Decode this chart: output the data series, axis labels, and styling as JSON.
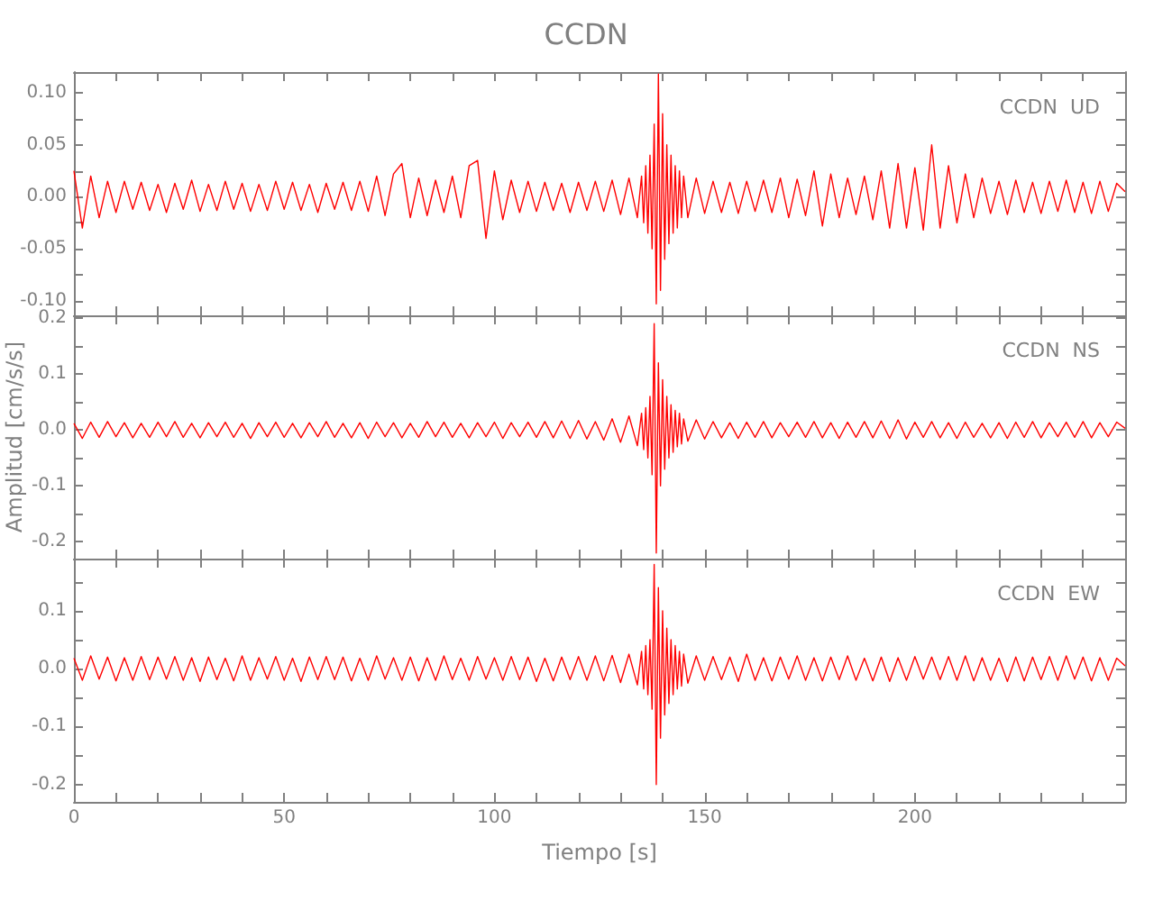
{
  "chart_data": [
    {
      "type": "line",
      "title": "CCDN",
      "annotations": [
        "CCDN  UD"
      ],
      "marker": "none",
      "line_style": "solid",
      "grid": false,
      "tick_labels": "y",
      "x": [
        0,
        2,
        4,
        6,
        8,
        10,
        12,
        14,
        16,
        18,
        20,
        22,
        24,
        26,
        28,
        30,
        32,
        34,
        36,
        38,
        40,
        42,
        44,
        46,
        48,
        50,
        52,
        54,
        56,
        58,
        60,
        62,
        64,
        66,
        68,
        70,
        72,
        74,
        76,
        78,
        80,
        82,
        84,
        86,
        88,
        90,
        92,
        94,
        96,
        98,
        100,
        102,
        104,
        106,
        108,
        110,
        112,
        114,
        116,
        118,
        120,
        122,
        124,
        126,
        128,
        130,
        132,
        134,
        135,
        135.5,
        136,
        136.5,
        137,
        137.5,
        138,
        138.5,
        139,
        139.5,
        140,
        140.5,
        141,
        141.5,
        142,
        142.5,
        143,
        143.5,
        144,
        144.5,
        145,
        146,
        148,
        150,
        152,
        154,
        156,
        158,
        160,
        162,
        164,
        166,
        168,
        170,
        172,
        174,
        176,
        178,
        180,
        182,
        184,
        186,
        188,
        190,
        192,
        194,
        196,
        198,
        200,
        202,
        204,
        206,
        208,
        210,
        212,
        214,
        216,
        218,
        220,
        222,
        224,
        226,
        228,
        230,
        232,
        234,
        236,
        238,
        240,
        242,
        244,
        246,
        248,
        250
      ],
      "xlim": [
        0,
        250
      ],
      "xticks": [
        0,
        {
          "value": 10,
          "label": null
        },
        {
          "value": 20,
          "label": null
        },
        {
          "value": 30,
          "label": null
        },
        {
          "value": 40,
          "label": null
        },
        50,
        {
          "value": 60,
          "label": null
        },
        {
          "value": 70,
          "label": null
        },
        {
          "value": 80,
          "label": null
        },
        {
          "value": 90,
          "label": null
        },
        100,
        {
          "value": 110,
          "label": null
        },
        {
          "value": 120,
          "label": null
        },
        {
          "value": 130,
          "label": null
        },
        {
          "value": 140,
          "label": null
        },
        150,
        {
          "value": 160,
          "label": null
        },
        {
          "value": 170,
          "label": null
        },
        {
          "value": 180,
          "label": null
        },
        {
          "value": 190,
          "label": null
        },
        200,
        {
          "value": 210,
          "label": null
        },
        {
          "value": 220,
          "label": null
        },
        {
          "value": 230,
          "label": null
        },
        {
          "value": 240,
          "label": null
        }
      ],
      "ylim": [
        -0.114,
        0.12
      ],
      "yticks": [
        {
          "value": -0.1,
          "label": "-0.10"
        },
        {
          "value": -0.075,
          "label": null
        },
        {
          "value": -0.05,
          "label": "-0.05"
        },
        {
          "value": -0.025,
          "label": null
        },
        {
          "value": 0,
          "label": "0.00"
        },
        {
          "value": 0.025,
          "label": null
        },
        {
          "value": 0.05,
          "label": "0.05"
        },
        {
          "value": 0.075,
          "label": null
        },
        {
          "value": 0.1,
          "label": "0.10"
        }
      ],
      "series": [
        {
          "color": "#ff0000",
          "values": [
            0.025,
            -0.03,
            0.02,
            -0.02,
            0.015,
            -0.015,
            0.015,
            -0.012,
            0.014,
            -0.013,
            0.012,
            -0.015,
            0.013,
            -0.012,
            0.016,
            -0.014,
            0.012,
            -0.013,
            0.015,
            -0.012,
            0.013,
            -0.014,
            0.012,
            -0.013,
            0.015,
            -0.012,
            0.014,
            -0.013,
            0.012,
            -0.015,
            0.013,
            -0.012,
            0.014,
            -0.013,
            0.015,
            -0.014,
            0.02,
            -0.018,
            0.022,
            0.032,
            -0.02,
            0.018,
            -0.018,
            0.016,
            -0.015,
            0.02,
            -0.02,
            0.03,
            0.035,
            -0.04,
            0.025,
            -0.022,
            0.016,
            -0.015,
            0.015,
            -0.014,
            0.014,
            -0.013,
            0.013,
            -0.015,
            0.014,
            -0.013,
            0.015,
            -0.014,
            0.016,
            -0.017,
            0.018,
            -0.02,
            0.02,
            -0.025,
            0.03,
            -0.035,
            0.04,
            -0.05,
            0.07,
            -0.103,
            0.118,
            -0.09,
            0.08,
            -0.06,
            0.05,
            -0.045,
            0.04,
            -0.035,
            0.03,
            -0.03,
            0.025,
            -0.02,
            0.02,
            -0.02,
            0.018,
            -0.016,
            0.015,
            -0.015,
            0.014,
            -0.016,
            0.015,
            -0.014,
            0.016,
            -0.015,
            0.018,
            -0.02,
            0.017,
            -0.018,
            0.025,
            -0.028,
            0.022,
            -0.02,
            0.018,
            -0.017,
            0.02,
            -0.022,
            0.025,
            -0.03,
            0.032,
            -0.03,
            0.028,
            -0.032,
            0.05,
            -0.03,
            0.03,
            -0.025,
            0.022,
            -0.02,
            0.018,
            -0.016,
            0.015,
            -0.017,
            0.016,
            -0.015,
            0.014,
            -0.016,
            0.015,
            -0.014,
            0.016,
            -0.015,
            0.014,
            -0.016,
            0.015,
            -0.014,
            0.013,
            0.005
          ]
        }
      ]
    },
    {
      "type": "line",
      "ylabel": "Amplitud [cm/s/s]",
      "annotations": [
        "CCDN  NS"
      ],
      "marker": "none",
      "line_style": "solid",
      "grid": false,
      "tick_labels": "y",
      "x": [
        0,
        2,
        4,
        6,
        8,
        10,
        12,
        14,
        16,
        18,
        20,
        22,
        24,
        26,
        28,
        30,
        32,
        34,
        36,
        38,
        40,
        42,
        44,
        46,
        48,
        50,
        52,
        54,
        56,
        58,
        60,
        62,
        64,
        66,
        68,
        70,
        72,
        74,
        76,
        78,
        80,
        82,
        84,
        86,
        88,
        90,
        92,
        94,
        96,
        98,
        100,
        102,
        104,
        106,
        108,
        110,
        112,
        114,
        116,
        118,
        120,
        122,
        124,
        126,
        128,
        130,
        132,
        134,
        135,
        135.5,
        136,
        136.5,
        137,
        137.5,
        138,
        138.5,
        139,
        139.5,
        140,
        140.5,
        141,
        141.5,
        142,
        142.5,
        143,
        143.5,
        144,
        144.5,
        145,
        146,
        148,
        150,
        152,
        154,
        156,
        158,
        160,
        162,
        164,
        166,
        168,
        170,
        172,
        174,
        176,
        178,
        180,
        182,
        184,
        186,
        188,
        190,
        192,
        194,
        196,
        198,
        200,
        202,
        204,
        206,
        208,
        210,
        212,
        214,
        216,
        218,
        220,
        222,
        224,
        226,
        228,
        230,
        232,
        234,
        236,
        238,
        240,
        242,
        244,
        246,
        248,
        250
      ],
      "xlim": [
        0,
        250
      ],
      "xticks": [
        0,
        {
          "value": 10,
          "label": null
        },
        {
          "value": 20,
          "label": null
        },
        {
          "value": 30,
          "label": null
        },
        {
          "value": 40,
          "label": null
        },
        50,
        {
          "value": 60,
          "label": null
        },
        {
          "value": 70,
          "label": null
        },
        {
          "value": 80,
          "label": null
        },
        {
          "value": 90,
          "label": null
        },
        100,
        {
          "value": 110,
          "label": null
        },
        {
          "value": 120,
          "label": null
        },
        {
          "value": 130,
          "label": null
        },
        {
          "value": 140,
          "label": null
        },
        150,
        {
          "value": 160,
          "label": null
        },
        {
          "value": 170,
          "label": null
        },
        {
          "value": 180,
          "label": null
        },
        {
          "value": 190,
          "label": null
        },
        200,
        {
          "value": 210,
          "label": null
        },
        {
          "value": 220,
          "label": null
        },
        {
          "value": 230,
          "label": null
        },
        {
          "value": 240,
          "label": null
        }
      ],
      "ylim": [
        -0.23,
        0.205
      ],
      "yticks": [
        {
          "value": -0.2,
          "label": "-0.2"
        },
        {
          "value": -0.15,
          "label": null
        },
        {
          "value": -0.1,
          "label": "-0.1"
        },
        {
          "value": -0.05,
          "label": null
        },
        {
          "value": 0,
          "label": "0.0"
        },
        {
          "value": 0.05,
          "label": null
        },
        {
          "value": 0.1,
          "label": "0.1"
        },
        {
          "value": 0.15,
          "label": null
        },
        {
          "value": 0.2,
          "label": "0.2"
        }
      ],
      "series": [
        {
          "color": "#ff0000",
          "values": [
            0.012,
            -0.015,
            0.014,
            -0.013,
            0.015,
            -0.012,
            0.013,
            -0.014,
            0.012,
            -0.013,
            0.014,
            -0.012,
            0.015,
            -0.013,
            0.012,
            -0.014,
            0.013,
            -0.012,
            0.014,
            -0.013,
            0.012,
            -0.015,
            0.013,
            -0.012,
            0.014,
            -0.013,
            0.012,
            -0.014,
            0.013,
            -0.012,
            0.015,
            -0.013,
            0.012,
            -0.014,
            0.013,
            -0.015,
            0.014,
            -0.012,
            0.013,
            -0.014,
            0.012,
            -0.013,
            0.015,
            -0.012,
            0.014,
            -0.013,
            0.012,
            -0.014,
            0.013,
            -0.012,
            0.014,
            -0.015,
            0.013,
            -0.012,
            0.014,
            -0.013,
            0.015,
            -0.014,
            0.016,
            -0.015,
            0.017,
            -0.016,
            0.015,
            -0.018,
            0.02,
            -0.022,
            0.025,
            -0.028,
            0.03,
            -0.035,
            0.04,
            -0.05,
            0.06,
            -0.08,
            0.19,
            -0.22,
            0.12,
            -0.1,
            0.09,
            -0.07,
            0.06,
            -0.05,
            0.045,
            -0.04,
            0.035,
            -0.03,
            0.03,
            -0.025,
            0.02,
            -0.02,
            0.018,
            -0.016,
            0.015,
            -0.014,
            0.013,
            -0.015,
            0.014,
            -0.013,
            0.015,
            -0.014,
            0.013,
            -0.012,
            0.014,
            -0.013,
            0.015,
            -0.014,
            0.013,
            -0.015,
            0.014,
            -0.013,
            0.015,
            -0.014,
            0.016,
            -0.015,
            0.018,
            -0.016,
            0.014,
            -0.013,
            0.015,
            -0.014,
            0.013,
            -0.015,
            0.014,
            -0.013,
            0.012,
            -0.014,
            0.013,
            -0.015,
            0.014,
            -0.013,
            0.015,
            -0.014,
            0.013,
            -0.012,
            0.014,
            -0.013,
            0.015,
            -0.014,
            0.013,
            -0.012,
            0.014,
            0.003
          ]
        }
      ]
    },
    {
      "type": "line",
      "xlabel": "Tiempo [s]",
      "annotations": [
        "CCDN  EW"
      ],
      "marker": "none",
      "line_style": "solid",
      "grid": false,
      "x": [
        0,
        2,
        4,
        6,
        8,
        10,
        12,
        14,
        16,
        18,
        20,
        22,
        24,
        26,
        28,
        30,
        32,
        34,
        36,
        38,
        40,
        42,
        44,
        46,
        48,
        50,
        52,
        54,
        56,
        58,
        60,
        62,
        64,
        66,
        68,
        70,
        72,
        74,
        76,
        78,
        80,
        82,
        84,
        86,
        88,
        90,
        92,
        94,
        96,
        98,
        100,
        102,
        104,
        106,
        108,
        110,
        112,
        114,
        116,
        118,
        120,
        122,
        124,
        126,
        128,
        130,
        132,
        134,
        135,
        135.5,
        136,
        136.5,
        137,
        137.5,
        138,
        138.5,
        139,
        139.5,
        140,
        140.5,
        141,
        141.5,
        142,
        142.5,
        143,
        143.5,
        144,
        144.5,
        145,
        146,
        148,
        150,
        152,
        154,
        156,
        158,
        160,
        162,
        164,
        166,
        168,
        170,
        172,
        174,
        176,
        178,
        180,
        182,
        184,
        186,
        188,
        190,
        192,
        194,
        196,
        198,
        200,
        202,
        204,
        206,
        208,
        210,
        212,
        214,
        216,
        218,
        220,
        222,
        224,
        226,
        228,
        230,
        232,
        234,
        236,
        238,
        240,
        242,
        244,
        246,
        248,
        250
      ],
      "xlim": [
        0,
        250
      ],
      "xticks": [
        0,
        {
          "value": 10,
          "label": null
        },
        {
          "value": 20,
          "label": null
        },
        {
          "value": 30,
          "label": null
        },
        {
          "value": 40,
          "label": null
        },
        50,
        {
          "value": 60,
          "label": null
        },
        {
          "value": 70,
          "label": null
        },
        {
          "value": 80,
          "label": null
        },
        {
          "value": 90,
          "label": null
        },
        100,
        {
          "value": 110,
          "label": null
        },
        {
          "value": 120,
          "label": null
        },
        {
          "value": 130,
          "label": null
        },
        {
          "value": 140,
          "label": null
        },
        150,
        {
          "value": 160,
          "label": null
        },
        {
          "value": 170,
          "label": null
        },
        {
          "value": 180,
          "label": null
        },
        {
          "value": 190,
          "label": null
        },
        200,
        {
          "value": 210,
          "label": null
        },
        {
          "value": 220,
          "label": null
        },
        {
          "value": 230,
          "label": null
        },
        {
          "value": 240,
          "label": null
        }
      ],
      "ylim": [
        -0.23,
        0.19
      ],
      "yticks": [
        {
          "value": -0.2,
          "label": "-0.2"
        },
        {
          "value": -0.15,
          "label": null
        },
        {
          "value": -0.1,
          "label": "-0.1"
        },
        {
          "value": -0.05,
          "label": null
        },
        {
          "value": 0,
          "label": "0.0"
        },
        {
          "value": 0.05,
          "label": null
        },
        {
          "value": 0.1,
          "label": "0.1"
        },
        {
          "value": 0.15,
          "label": null
        }
      ],
      "series": [
        {
          "color": "#ff0000",
          "values": [
            0.018,
            -0.02,
            0.022,
            -0.018,
            0.02,
            -0.021,
            0.019,
            -0.02,
            0.021,
            -0.019,
            0.02,
            -0.018,
            0.021,
            -0.02,
            0.019,
            -0.022,
            0.02,
            -0.019,
            0.018,
            -0.021,
            0.022,
            -0.02,
            0.019,
            -0.018,
            0.021,
            -0.02,
            0.018,
            -0.022,
            0.02,
            -0.019,
            0.021,
            -0.019,
            0.02,
            -0.021,
            0.018,
            -0.02,
            0.022,
            -0.018,
            0.019,
            -0.02,
            0.02,
            -0.021,
            0.019,
            -0.02,
            0.022,
            -0.019,
            0.018,
            -0.02,
            0.021,
            -0.018,
            0.019,
            -0.02,
            0.021,
            -0.019,
            0.02,
            -0.022,
            0.018,
            -0.021,
            0.02,
            -0.019,
            0.021,
            -0.02,
            0.022,
            -0.021,
            0.023,
            -0.024,
            0.025,
            -0.028,
            0.03,
            -0.035,
            0.04,
            -0.045,
            0.05,
            -0.07,
            0.18,
            -0.2,
            0.14,
            -0.12,
            0.1,
            -0.08,
            0.07,
            -0.06,
            0.05,
            -0.045,
            0.04,
            -0.035,
            0.03,
            -0.03,
            0.025,
            -0.025,
            0.022,
            -0.02,
            0.021,
            -0.019,
            0.02,
            -0.022,
            0.025,
            -0.02,
            0.019,
            -0.021,
            0.02,
            -0.018,
            0.022,
            -0.02,
            0.019,
            -0.021,
            0.02,
            -0.019,
            0.022,
            -0.02,
            0.018,
            -0.021,
            0.02,
            -0.022,
            0.019,
            -0.02,
            0.021,
            -0.018,
            0.02,
            -0.019,
            0.021,
            -0.02,
            0.022,
            -0.021,
            0.019,
            -0.02,
            0.018,
            -0.022,
            0.02,
            -0.021,
            0.02,
            -0.019,
            0.021,
            -0.02,
            0.022,
            -0.018,
            0.02,
            -0.021,
            0.019,
            -0.02,
            0.018,
            0.005
          ]
        }
      ]
    }
  ]
}
